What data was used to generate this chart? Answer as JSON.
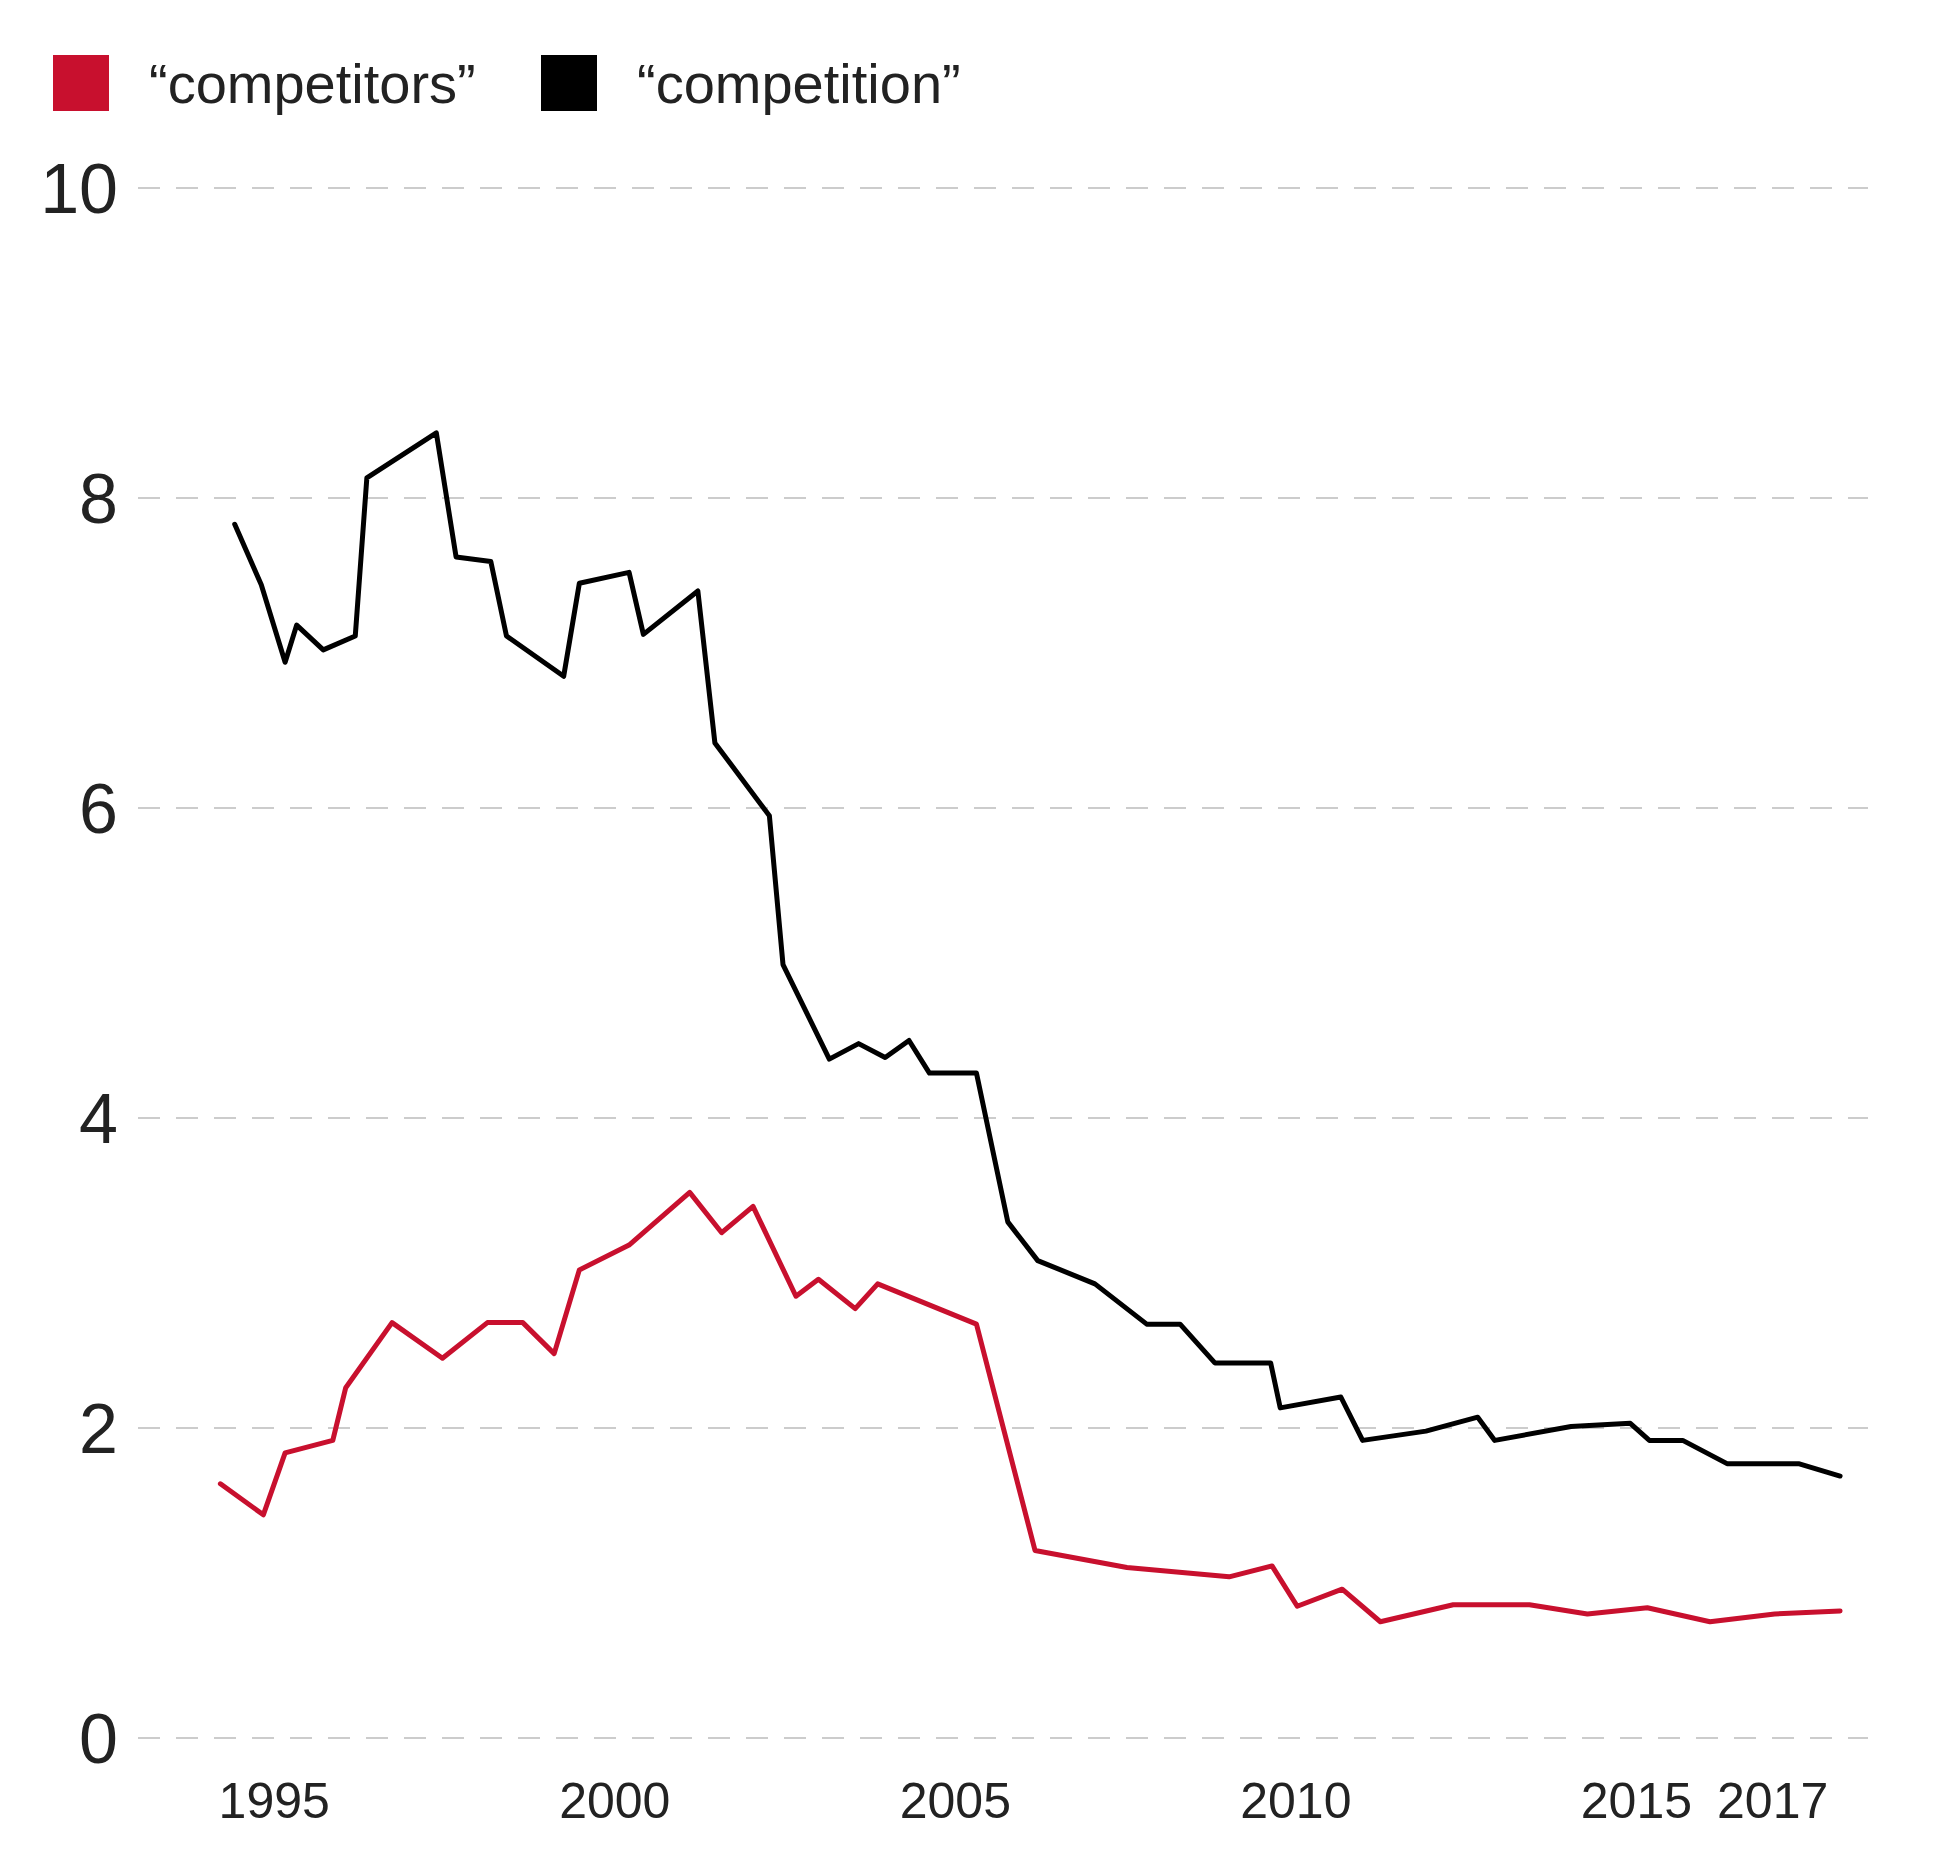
{
  "chart_data": {
    "type": "line",
    "xlim": [
      1993,
      2018.4
    ],
    "xticks": [
      1995,
      2000,
      2005,
      2010,
      2015,
      2017
    ],
    "ylim": [
      0,
      10
    ],
    "yticks": [
      0,
      2,
      4,
      6,
      8,
      10
    ],
    "grid": "y",
    "legend": "top left",
    "line_style": "solid",
    "marker": "none",
    "series": [
      {
        "name": "“competitors”",
        "color": "#c8102e",
        "x": [
          1994.21,
          1994.84,
          1995.16,
          1995.86,
          1996.05,
          1996.73,
          1997.47,
          1998.13,
          1998.65,
          1999.11,
          1999.48,
          2000.21,
          2001.1,
          2001.57,
          2002.03,
          2002.66,
          2002.99,
          2003.53,
          2003.86,
          2005.31,
          2006.17,
          2007.52,
          2009.02,
          2009.65,
          2010.02,
          2010.68,
          2011.24,
          2012.31,
          2013.43,
          2014.28,
          2015.16,
          2016.08,
          2017.03,
          2017.99
        ],
        "values": [
          1.64,
          1.44,
          1.84,
          1.92,
          2.26,
          2.68,
          2.45,
          2.68,
          2.68,
          2.48,
          3.02,
          3.18,
          3.52,
          3.26,
          3.43,
          2.85,
          2.96,
          2.77,
          2.93,
          2.67,
          1.21,
          1.1,
          1.04,
          1.11,
          0.85,
          0.96,
          0.75,
          0.86,
          0.86,
          0.8,
          0.84,
          0.75,
          0.8,
          0.82
        ]
      },
      {
        "name": "“competition”",
        "color": "#000000",
        "x": [
          1994.42,
          1994.81,
          1995.16,
          1995.33,
          1995.72,
          1996.19,
          1996.36,
          1997.38,
          1997.67,
          1998.18,
          1998.41,
          1999.25,
          1999.48,
          2000.21,
          2000.42,
          2001.22,
          2001.47,
          2002.27,
          2002.47,
          2003.15,
          2003.58,
          2003.97,
          2004.32,
          2004.62,
          2005.31,
          2005.77,
          2006.21,
          2007.05,
          2007.81,
          2008.3,
          2008.81,
          2009.63,
          2009.77,
          2010.66,
          2010.98,
          2011.91,
          2012.67,
          2012.92,
          2014.04,
          2014.91,
          2015.19,
          2015.68,
          2016.33,
          2017.38,
          2017.99
        ],
        "values": [
          7.83,
          7.44,
          6.94,
          7.18,
          7.02,
          7.11,
          8.13,
          8.42,
          7.62,
          7.59,
          7.11,
          6.85,
          7.45,
          7.52,
          7.12,
          7.4,
          6.42,
          5.95,
          4.99,
          4.38,
          4.48,
          4.39,
          4.5,
          4.29,
          4.29,
          3.33,
          3.08,
          2.93,
          2.67,
          2.67,
          2.42,
          2.42,
          2.13,
          2.2,
          1.92,
          1.98,
          2.07,
          1.92,
          2.01,
          2.03,
          1.92,
          1.92,
          1.77,
          1.77,
          1.69
        ]
      }
    ]
  }
}
